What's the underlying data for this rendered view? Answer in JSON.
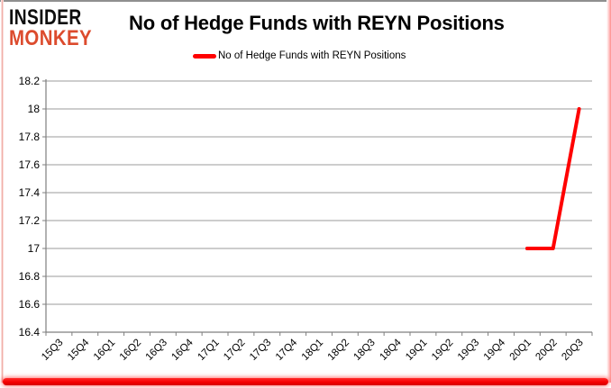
{
  "logo": {
    "line1": "INSIDER",
    "line2": "MONKEY"
  },
  "header": {
    "title": "No of Hedge Funds with REYN Positions"
  },
  "legend": {
    "label": "No of Hedge Funds with REYN Positions"
  },
  "colors": {
    "series_red": "#FF0000",
    "logo_black": "#0D0D0D",
    "logo_red": "#DC4B2D",
    "gridline_gray": "#9B9B9B",
    "axis_gray": "#7F7F7F",
    "axis_text": "#000000",
    "bottom_bar_red": "#F50000"
  },
  "chart_data": {
    "type": "line",
    "title": "No of Hedge Funds with REYN Positions",
    "categories": [
      "15Q3",
      "15Q4",
      "16Q1",
      "16Q2",
      "16Q3",
      "16Q4",
      "17Q1",
      "17Q2",
      "17Q3",
      "17Q4",
      "18Q1",
      "18Q2",
      "18Q3",
      "18Q4",
      "19Q1",
      "19Q2",
      "19Q3",
      "19Q4",
      "20Q1",
      "20Q2",
      "20Q3"
    ],
    "series": [
      {
        "name": "No of Hedge Funds with REYN Positions",
        "color": "#FF0000",
        "values": [
          null,
          null,
          null,
          null,
          null,
          null,
          null,
          null,
          null,
          null,
          null,
          null,
          null,
          null,
          null,
          null,
          null,
          null,
          17,
          17,
          18
        ]
      }
    ],
    "xlabel": "",
    "ylabel": "",
    "ylim": [
      16.4,
      18.2
    ],
    "ytick_step": 0.2,
    "ytick_labels": [
      "16.4",
      "16.6",
      "16.8",
      "17",
      "17.2",
      "17.4",
      "17.6",
      "17.8",
      "18",
      "18.2"
    ],
    "grid": true,
    "legend_position": "top"
  }
}
